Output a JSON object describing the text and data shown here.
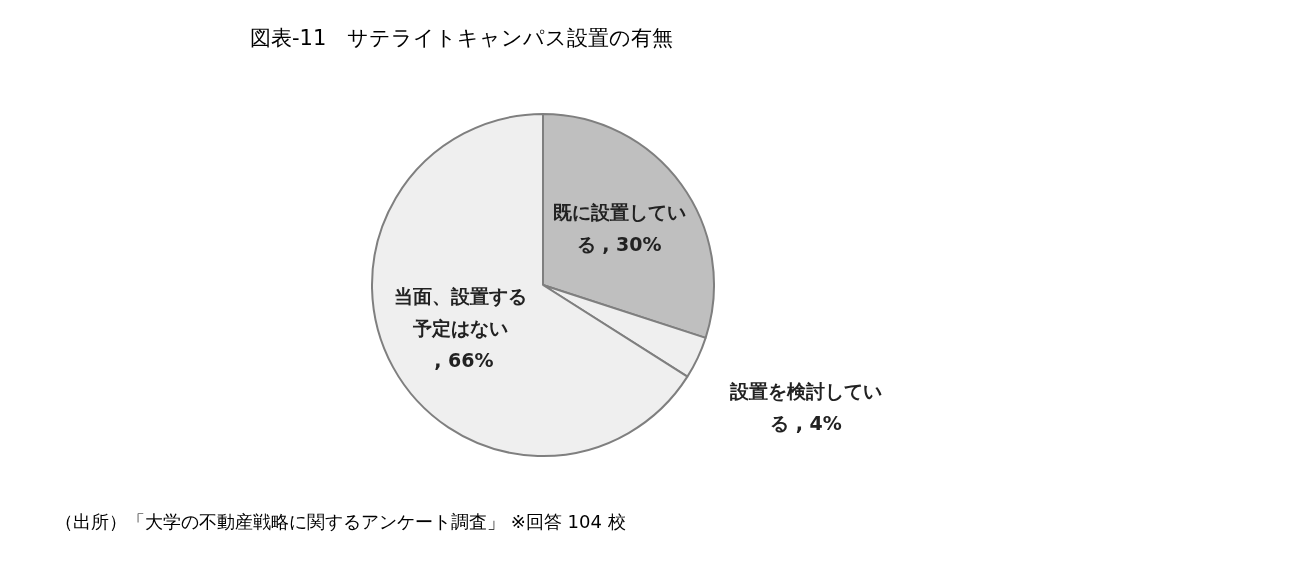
{
  "chart_data": {
    "type": "pie",
    "title": "図表-11　サテライトキャンパス設置の有無",
    "categories": [
      "既に設置している",
      "設置を検討している",
      "当面、設置する予定はない"
    ],
    "values": [
      30,
      4,
      66
    ],
    "value_labels": [
      ", 30%",
      ", 4%",
      ", 66%"
    ],
    "colors": [
      "#bfbfbf",
      "#efefef",
      "#efefef"
    ],
    "legend": false,
    "annotations": [
      "（出所）「大学の不動産戦略に関するアンケート調査」 ※回答 104 校"
    ]
  }
}
